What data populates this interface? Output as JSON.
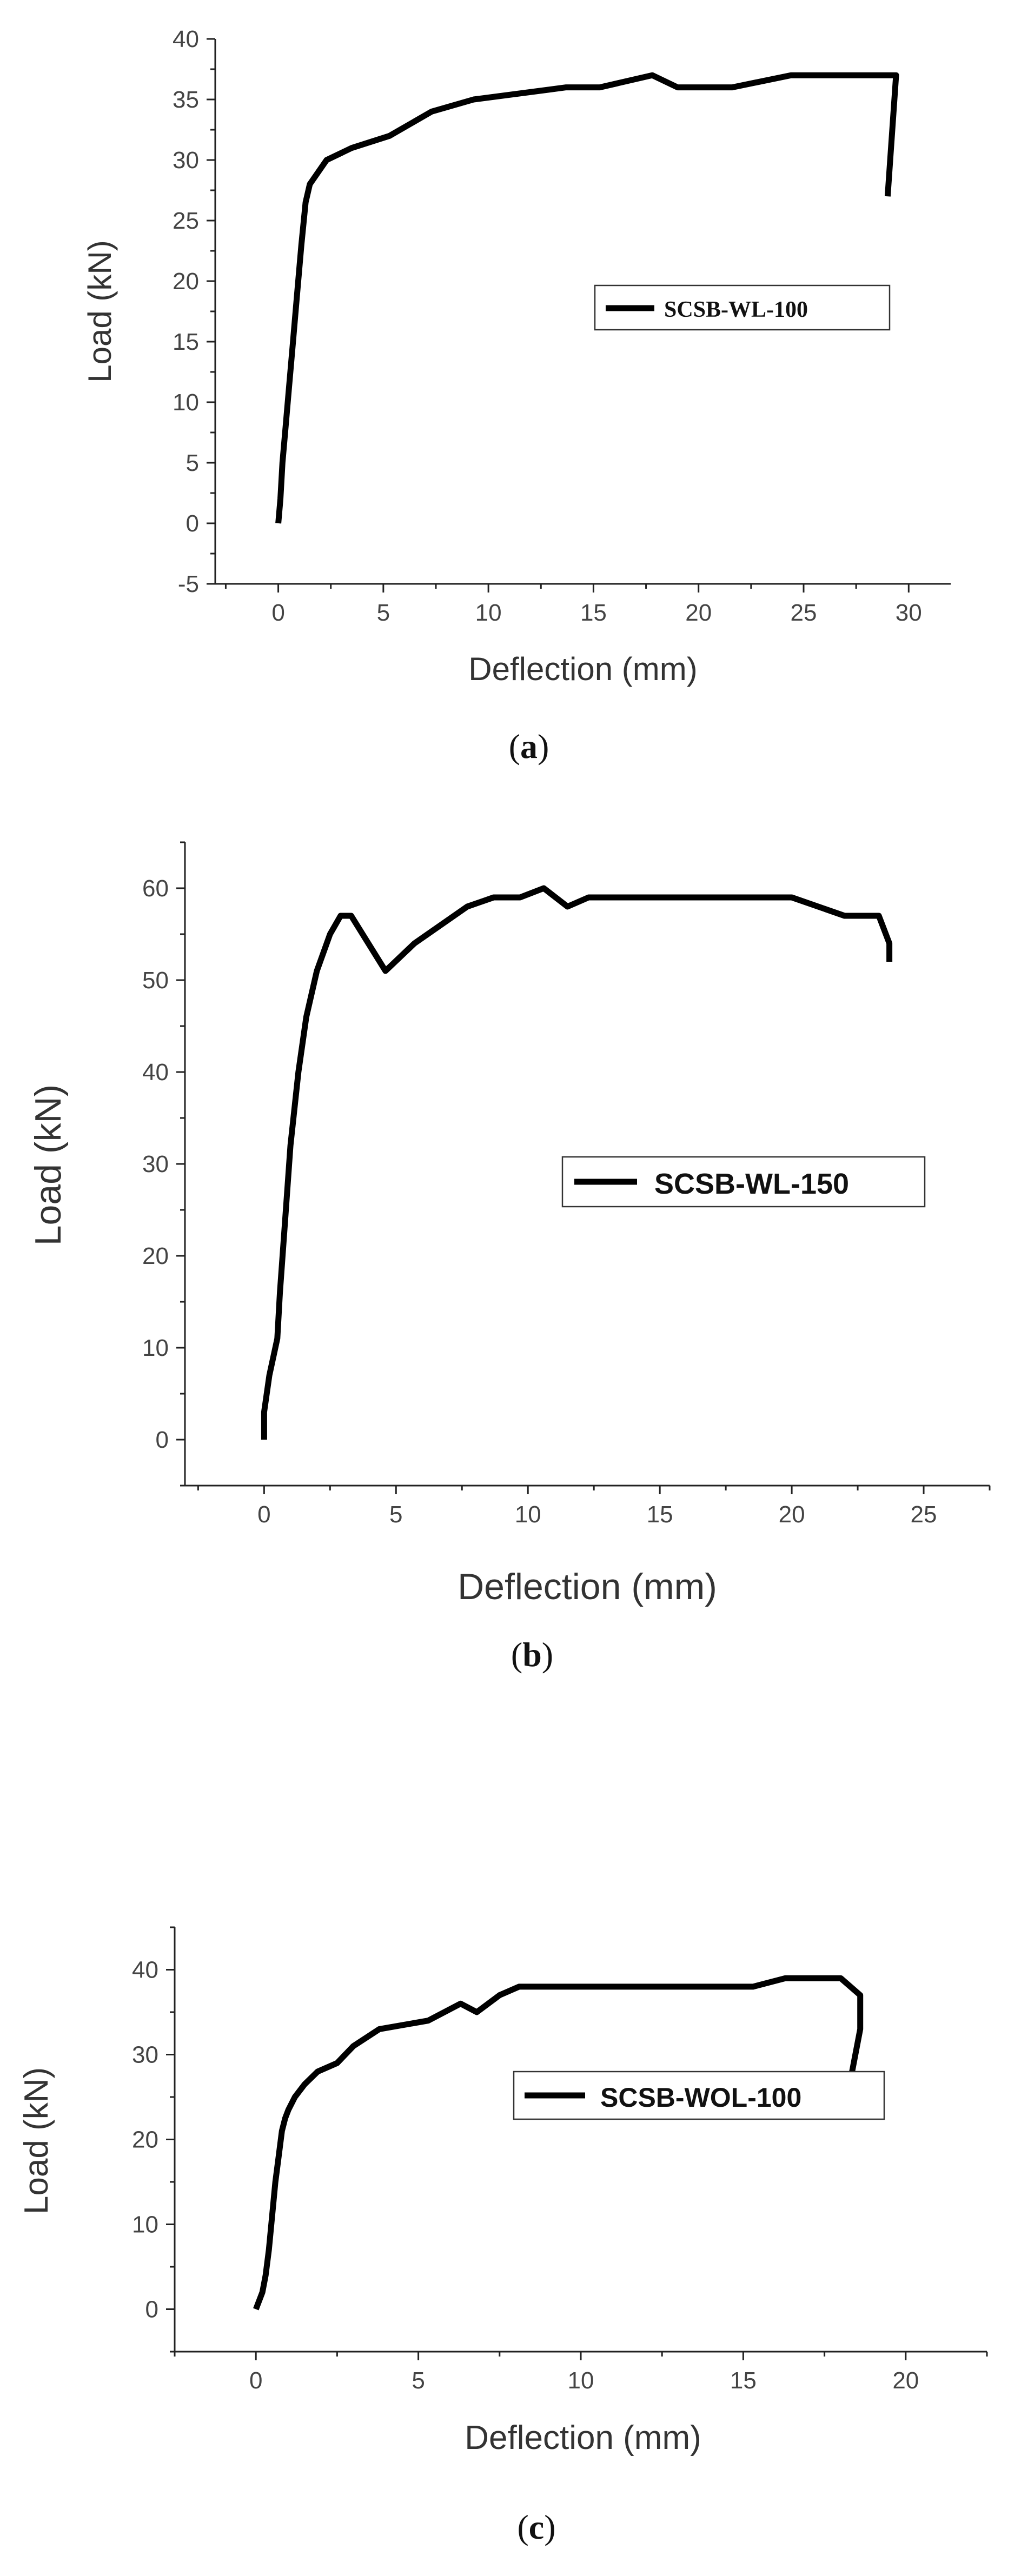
{
  "chart_data": [
    {
      "type": "line",
      "xlabel": "Deflection (mm)",
      "ylabel": "Load (kN)",
      "xlim": [
        -3,
        32
      ],
      "ylim": [
        -5,
        40
      ],
      "xticks": [
        0,
        5,
        10,
        15,
        20,
        25,
        30
      ],
      "yticks": [
        -5,
        0,
        5,
        10,
        15,
        20,
        25,
        30,
        35,
        40
      ],
      "legend_position": "right",
      "caption_letter": "a",
      "series": [
        {
          "name": "SCSB-WL-100",
          "x": [
            0.0,
            0.1,
            0.2,
            0.35,
            0.5,
            0.7,
            0.9,
            1.1,
            1.3,
            1.5,
            2.3,
            3.5,
            5.3,
            7.3,
            9.3,
            13.7,
            15.3,
            17.8,
            19.0,
            21.6,
            24.4,
            29.4,
            29.0
          ],
          "y": [
            0,
            2,
            5,
            8,
            11,
            15,
            19,
            23,
            26.5,
            28,
            30,
            31,
            32,
            34,
            35,
            36,
            36,
            37,
            36,
            36,
            37,
            37,
            27
          ]
        }
      ]
    },
    {
      "type": "line",
      "xlabel": "Deflection (mm)",
      "ylabel": "Load (kN)",
      "xlim": [
        -3,
        27.5
      ],
      "ylim": [
        -5,
        65
      ],
      "xticks": [
        0,
        5,
        10,
        15,
        20,
        25
      ],
      "yticks": [
        0,
        10,
        20,
        30,
        40,
        50,
        60
      ],
      "legend_position": "right",
      "caption_letter": "b",
      "series": [
        {
          "name": "SCSB-WL-150",
          "x": [
            0.0,
            0.0,
            0.2,
            0.5,
            0.6,
            0.8,
            1.0,
            1.3,
            1.6,
            2.0,
            2.5,
            2.9,
            3.3,
            4.6,
            5.7,
            7.7,
            8.7,
            9.7,
            10.6,
            11.5,
            12.3,
            20.0,
            22.0,
            23.3,
            23.7,
            23.7
          ],
          "y": [
            0,
            3,
            7,
            11,
            16,
            24,
            32,
            40,
            46,
            51,
            55,
            57,
            57,
            51,
            54,
            58,
            59,
            59,
            60,
            58,
            59,
            59,
            57,
            57,
            54,
            52
          ]
        }
      ]
    },
    {
      "type": "line",
      "xlabel": "Deflection (mm)",
      "ylabel": "Load (kN)",
      "xlim": [
        -2.5,
        22.5
      ],
      "ylim": [
        -5,
        45
      ],
      "xticks": [
        0,
        5,
        10,
        15,
        20
      ],
      "yticks": [
        0,
        10,
        20,
        30,
        40
      ],
      "legend_position": "right",
      "caption_letter": "c",
      "series": [
        {
          "name": "SCSB-WOL-100",
          "x": [
            0.0,
            0.2,
            0.3,
            0.4,
            0.5,
            0.6,
            0.7,
            0.8,
            0.9,
            1.0,
            1.2,
            1.5,
            1.9,
            2.5,
            3.0,
            3.8,
            5.3,
            6.3,
            6.8,
            7.5,
            8.1,
            15.3,
            16.3,
            18.0,
            18.6,
            18.6,
            18.3
          ],
          "y": [
            0,
            2,
            4,
            7,
            11,
            15,
            18,
            21,
            22.5,
            23.5,
            25,
            26.5,
            28,
            29,
            31,
            33,
            34,
            36,
            35,
            37,
            38,
            38,
            39,
            39,
            37,
            33,
            27
          ]
        }
      ]
    }
  ]
}
